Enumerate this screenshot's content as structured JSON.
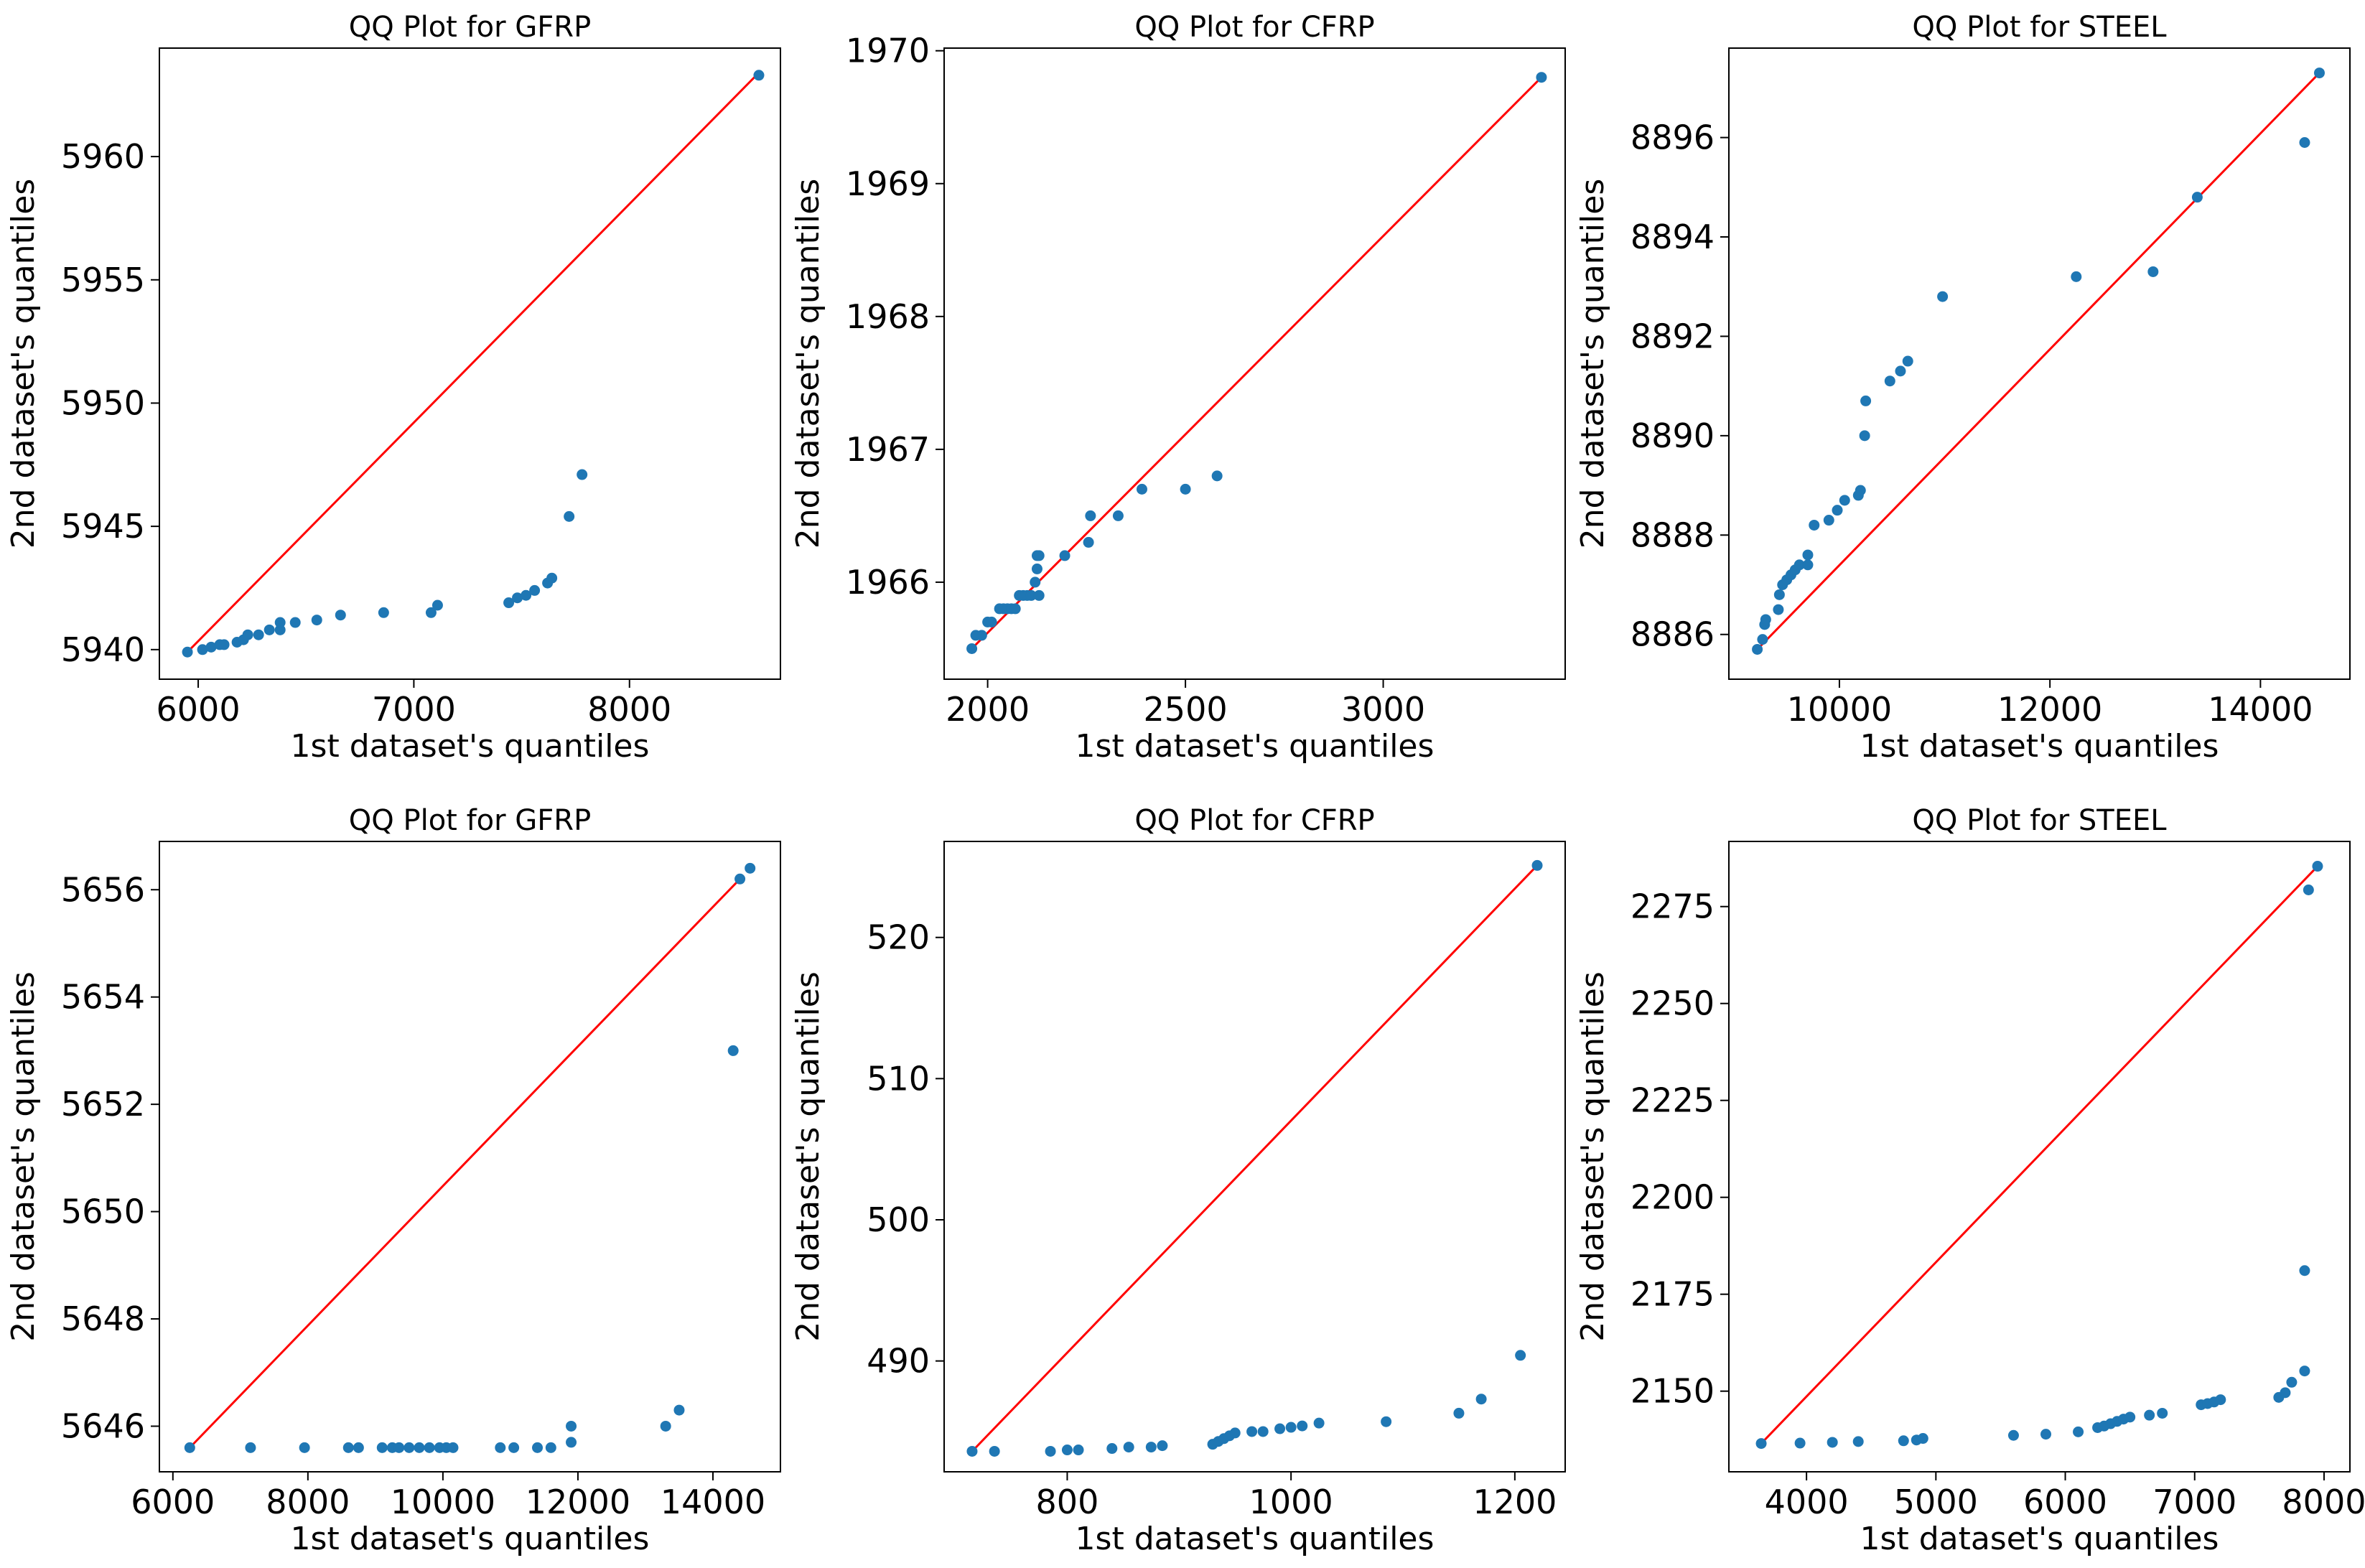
{
  "figure": {
    "background": "#ffffff"
  },
  "style": {
    "point_color": "#1f77b4",
    "line_color": "#ff0000",
    "axis_color": "#000000"
  },
  "chart_data": [
    {
      "type": "scatter",
      "title": "QQ Plot for GFRP",
      "xlabel": "1st dataset's quantiles",
      "ylabel": "2nd dataset's quantiles",
      "xlim": [
        5820,
        8700
      ],
      "ylim": [
        5938.8,
        5964.4
      ],
      "xticks": [
        6000,
        7000,
        8000
      ],
      "yticks": [
        5940,
        5945,
        5950,
        5955,
        5960
      ],
      "reference_line": {
        "x": [
          5950,
          8600
        ],
        "y": [
          5939.9,
          5963.4
        ]
      },
      "series": [
        {
          "name": "quantiles",
          "x": [
            5950,
            6020,
            6060,
            6100,
            6120,
            6180,
            6210,
            6230,
            6280,
            6330,
            6380,
            6380,
            6450,
            6550,
            6660,
            6860,
            7080,
            7110,
            7440,
            7480,
            7520,
            7560,
            7620,
            7640,
            7720,
            7780,
            8600
          ],
          "y": [
            5939.9,
            5940.0,
            5940.1,
            5940.2,
            5940.2,
            5940.3,
            5940.4,
            5940.6,
            5940.6,
            5940.8,
            5940.8,
            5941.1,
            5941.1,
            5941.2,
            5941.4,
            5941.5,
            5941.5,
            5941.8,
            5941.9,
            5942.1,
            5942.2,
            5942.4,
            5942.7,
            5942.9,
            5945.4,
            5947.1,
            5963.3
          ]
        }
      ]
    },
    {
      "type": "scatter",
      "title": "QQ Plot for CFRP",
      "xlabel": "1st dataset's quantiles",
      "ylabel": "2nd dataset's quantiles",
      "xlim": [
        1890,
        3460
      ],
      "ylim": [
        1965.27,
        1970.02
      ],
      "xticks": [
        2000,
        2500,
        3000
      ],
      "yticks": [
        1966,
        1967,
        1968,
        1969,
        1970
      ],
      "reference_line": {
        "x": [
          1960,
          3400
        ],
        "y": [
          1965.5,
          1969.8
        ]
      },
      "series": [
        {
          "name": "quantiles",
          "x": [
            1960,
            1970,
            1985,
            2000,
            2010,
            2030,
            2040,
            2050,
            2060,
            2070,
            2080,
            2090,
            2100,
            2110,
            2120,
            2125,
            2125,
            2130,
            2130,
            2195,
            2255,
            2260,
            2330,
            2390,
            2500,
            2580,
            3400
          ],
          "y": [
            1965.5,
            1965.6,
            1965.6,
            1965.7,
            1965.7,
            1965.8,
            1965.8,
            1965.8,
            1965.8,
            1965.8,
            1965.9,
            1965.9,
            1965.9,
            1965.9,
            1966.0,
            1966.1,
            1966.2,
            1965.9,
            1966.2,
            1966.2,
            1966.3,
            1966.5,
            1966.5,
            1966.7,
            1966.7,
            1966.8,
            1969.8
          ]
        }
      ]
    },
    {
      "type": "scatter",
      "title": "QQ Plot for STEEL",
      "xlabel": "1st dataset's quantiles",
      "ylabel": "2nd dataset's quantiles",
      "xlim": [
        8950,
        14850
      ],
      "ylim": [
        8885.1,
        8897.8
      ],
      "xticks": [
        10000,
        12000,
        14000
      ],
      "yticks": [
        8886,
        8888,
        8890,
        8892,
        8894,
        8896
      ],
      "reference_line": {
        "x": [
          9220,
          14560
        ],
        "y": [
          8885.7,
          8897.3
        ]
      },
      "series": [
        {
          "name": "quantiles",
          "x": [
            9220,
            9270,
            9290,
            9300,
            9420,
            9430,
            9460,
            9500,
            9540,
            9580,
            9620,
            9700,
            9700,
            9760,
            9900,
            9980,
            10050,
            10180,
            10200,
            10240,
            10250,
            10480,
            10580,
            10650,
            10980,
            12250,
            12980,
            13400,
            14420,
            14560
          ],
          "y": [
            8885.7,
            8885.9,
            8886.2,
            8886.3,
            8886.5,
            8886.8,
            8887.0,
            8887.1,
            8887.2,
            8887.3,
            8887.4,
            8887.4,
            8887.6,
            8888.2,
            8888.3,
            8888.5,
            8888.7,
            8888.8,
            8888.9,
            8890.0,
            8890.7,
            8891.1,
            8891.3,
            8891.5,
            8892.8,
            8893.2,
            8893.3,
            8894.8,
            8895.9,
            8897.3
          ]
        }
      ]
    },
    {
      "type": "scatter",
      "title": "QQ Plot for GFRP",
      "xlabel": "1st dataset's quantiles",
      "ylabel": "2nd dataset's quantiles",
      "xlim": [
        5800,
        15000
      ],
      "ylim": [
        5645.15,
        5656.9
      ],
      "xticks": [
        6000,
        8000,
        10000,
        12000,
        14000
      ],
      "yticks": [
        5646,
        5648,
        5650,
        5652,
        5654,
        5656
      ],
      "reference_line": {
        "x": [
          6250,
          14400
        ],
        "y": [
          5645.6,
          5656.2
        ]
      },
      "series": [
        {
          "name": "quantiles",
          "x": [
            6250,
            7150,
            7950,
            8600,
            8750,
            9100,
            9250,
            9350,
            9500,
            9650,
            9800,
            9950,
            10050,
            10150,
            10850,
            11050,
            11400,
            11600,
            11900,
            11900,
            13300,
            13500,
            14300,
            14400,
            14550
          ],
          "y": [
            5645.6,
            5645.6,
            5645.6,
            5645.6,
            5645.6,
            5645.6,
            5645.6,
            5645.6,
            5645.6,
            5645.6,
            5645.6,
            5645.6,
            5645.6,
            5645.6,
            5645.6,
            5645.6,
            5645.6,
            5645.6,
            5645.7,
            5646.0,
            5646.0,
            5646.3,
            5653.0,
            5656.2,
            5656.4
          ]
        }
      ]
    },
    {
      "type": "scatter",
      "title": "QQ Plot for CFRP",
      "xlabel": "1st dataset's quantiles",
      "ylabel": "2nd dataset's quantiles",
      "xlim": [
        690,
        1245
      ],
      "ylim": [
        482.15,
        526.8
      ],
      "xticks": [
        800,
        1000,
        1200
      ],
      "yticks": [
        490,
        500,
        510,
        520
      ],
      "reference_line": {
        "x": [
          715,
          1220
        ],
        "y": [
          483.6,
          525.1
        ]
      },
      "series": [
        {
          "name": "quantiles",
          "x": [
            715,
            735,
            785,
            800,
            810,
            840,
            855,
            875,
            885,
            930,
            935,
            940,
            945,
            950,
            965,
            975,
            990,
            1000,
            1010,
            1025,
            1085,
            1150,
            1170,
            1205,
            1220
          ],
          "y": [
            483.6,
            483.6,
            483.6,
            483.7,
            483.7,
            483.8,
            483.9,
            483.9,
            484.0,
            484.1,
            484.3,
            484.5,
            484.7,
            484.9,
            485.0,
            485.0,
            485.2,
            485.3,
            485.4,
            485.6,
            485.7,
            486.3,
            487.3,
            490.4,
            525.1
          ]
        }
      ]
    },
    {
      "type": "scatter",
      "title": "QQ Plot for STEEL",
      "xlabel": "1st dataset's quantiles",
      "ylabel": "2nd dataset's quantiles",
      "xlim": [
        3400,
        8200
      ],
      "ylim": [
        2129.2,
        2291.8
      ],
      "xticks": [
        4000,
        5000,
        6000,
        7000,
        8000
      ],
      "yticks": [
        2150,
        2175,
        2200,
        2225,
        2250,
        2275
      ],
      "reference_line": {
        "x": [
          3650,
          7950
        ],
        "y": [
          2136.5,
          2285.4
        ]
      },
      "series": [
        {
          "name": "quantiles",
          "x": [
            3650,
            3950,
            4200,
            4400,
            4750,
            4850,
            4900,
            5600,
            5850,
            6100,
            6250,
            6300,
            6350,
            6400,
            6450,
            6500,
            6650,
            6750,
            7050,
            7100,
            7150,
            7200,
            7650,
            7700,
            7750,
            7850,
            7850,
            7880,
            7950
          ],
          "y": [
            2136.5,
            2136.6,
            2136.8,
            2137.0,
            2137.2,
            2137.4,
            2137.8,
            2138.6,
            2138.9,
            2139.5,
            2140.6,
            2141.0,
            2141.6,
            2142.2,
            2142.8,
            2143.3,
            2143.8,
            2144.3,
            2146.5,
            2146.8,
            2147.2,
            2147.8,
            2148.4,
            2149.6,
            2152.3,
            2155.2,
            2181.1,
            2279.3,
            2285.4
          ]
        }
      ]
    }
  ]
}
